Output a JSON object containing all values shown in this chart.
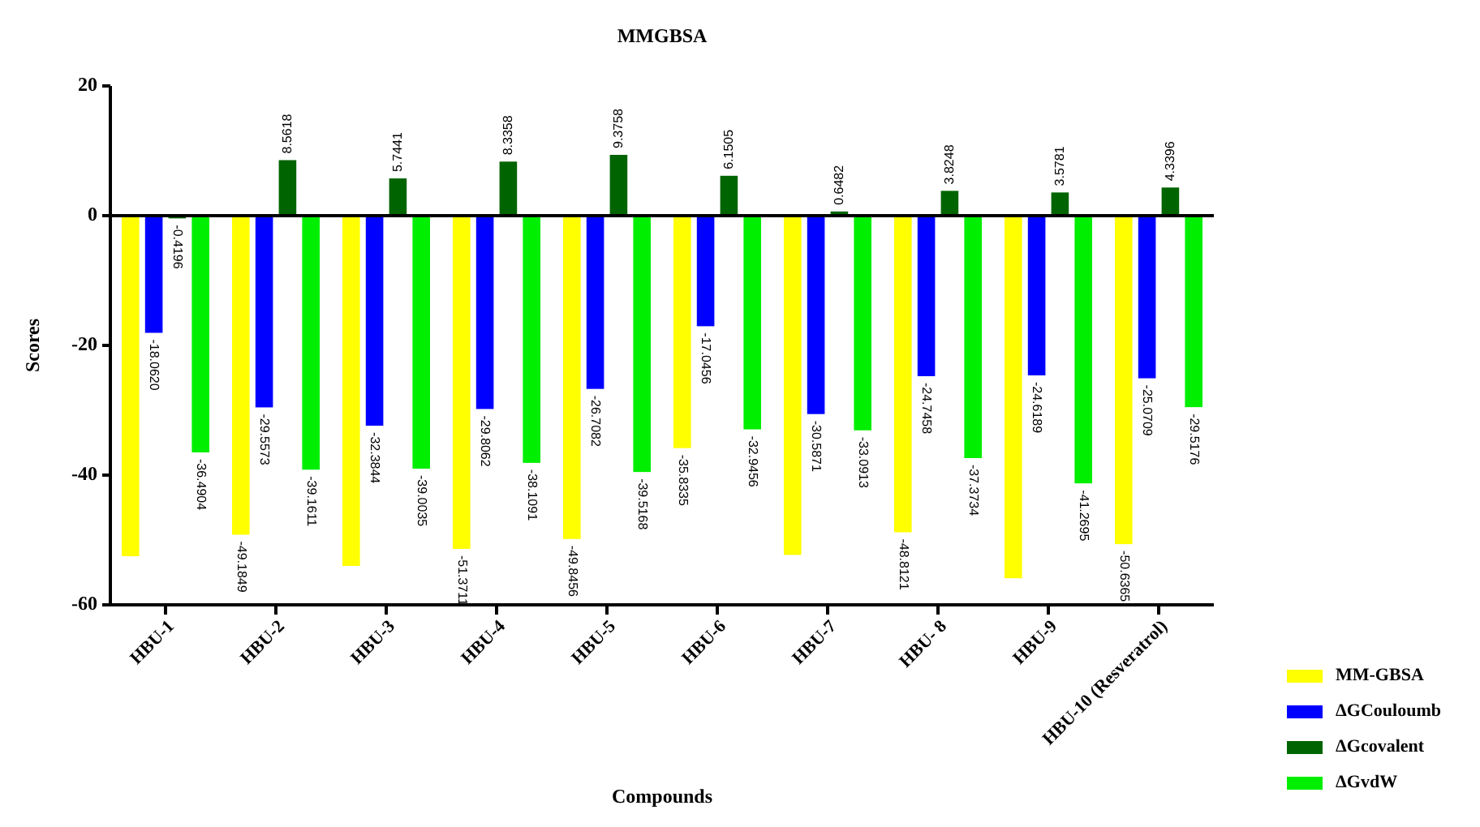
{
  "chart_data": {
    "type": "bar",
    "title": "MMGBSA",
    "xlabel": "Compounds",
    "ylabel": "Scores",
    "categories": [
      "HBU-1",
      "HBU-2",
      "HBU-3",
      "HBU-4",
      "HBU-5",
      "HBU-6",
      "HBU-7",
      "HBU- 8",
      "HBU-9",
      "HBU-10 (Resveratrol)"
    ],
    "series": [
      {
        "name": "MM-GBSA",
        "color": "#ffff00",
        "values": [
          -52.5,
          -49.1849,
          -54.0,
          -51.3711,
          -49.8456,
          -35.8335,
          -52.3,
          -48.8121,
          -55.9,
          -50.6365
        ],
        "value_labels": [
          null,
          "-49.1849",
          null,
          "-51.3711",
          "-49.8456",
          "-35.8335",
          null,
          "-48.8121",
          null,
          "-50.6365"
        ]
      },
      {
        "name": "ΔGCouloumb",
        "color": "#0000ff",
        "values": [
          -18.062,
          -29.5573,
          -32.3844,
          -29.8062,
          -26.7082,
          -17.0456,
          -30.5871,
          -24.7458,
          -24.6189,
          -25.0709
        ],
        "value_labels": [
          "-18.0620",
          "-29.5573",
          "-32.3844",
          "-29.8062",
          "-26.7082",
          "-17.0456",
          "-30.5871",
          "-24.7458",
          "-24.6189",
          "-25.0709"
        ]
      },
      {
        "name": "ΔGcovalent",
        "color": "#006400",
        "values": [
          -0.4196,
          8.5618,
          5.7441,
          8.3358,
          9.3758,
          6.1505,
          0.6482,
          3.8248,
          3.5781,
          4.3396
        ],
        "value_labels": [
          "-0.4196",
          "8.5618",
          "5.7441",
          "8.3358",
          "9.3758",
          "6.1505",
          "0.6482",
          "3.8248",
          "3.5781",
          "4.3396"
        ]
      },
      {
        "name": "ΔGvdW",
        "color": "#00ee00",
        "values": [
          -36.4904,
          -39.1611,
          -39.0035,
          -38.1091,
          -39.5168,
          -32.9456,
          -33.0913,
          -37.3734,
          -41.2695,
          -29.5176
        ],
        "value_labels": [
          "-36.4904",
          "-39.1611",
          "-39.0035",
          "-38.1091",
          "-39.5168",
          "-32.9456",
          "-33.0913",
          "-37.3734",
          "-41.2695",
          "-29.5176"
        ]
      }
    ],
    "ylim": [
      -60,
      20
    ],
    "yticks": [
      -60,
      -40,
      -20,
      0,
      20
    ],
    "legend": "bottom right"
  }
}
